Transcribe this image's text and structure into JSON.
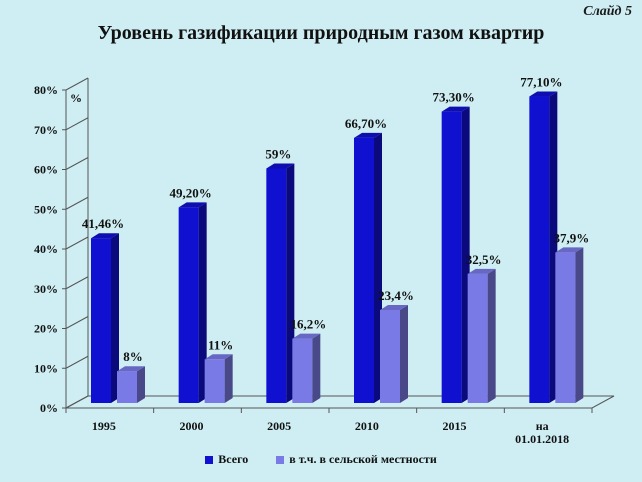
{
  "slide_label": "Слайд 5",
  "chart_data": {
    "type": "bar",
    "title": "Уровень газификации природным газом квартир",
    "ylabel": "%",
    "ylim": [
      0,
      80
    ],
    "y_ticks": [
      "0%",
      "10%",
      "20%",
      "30%",
      "40%",
      "50%",
      "60%",
      "70%",
      "80%"
    ],
    "categories": [
      [
        "1995"
      ],
      [
        "2000"
      ],
      [
        "2005"
      ],
      [
        "2010"
      ],
      [
        "2015"
      ],
      [
        "на",
        "01.01.2018"
      ]
    ],
    "series": [
      {
        "name": "Всего",
        "color": "#1010d0",
        "values": [
          41.46,
          49.2,
          59,
          66.7,
          73.3,
          77.1
        ],
        "labels": [
          "41,46%",
          "49,20%",
          "59%",
          "66,70%",
          "73,30%",
          "77,10%"
        ]
      },
      {
        "name": "в т.ч. в сельской местности",
        "color": "#7a7ae6",
        "values": [
          8,
          11,
          16.2,
          23.4,
          32.5,
          37.9
        ],
        "labels": [
          "8%",
          "11%",
          "16,2%",
          "23,4%",
          "32,5%",
          "37,9%"
        ]
      }
    ],
    "legend_position": "bottom"
  }
}
